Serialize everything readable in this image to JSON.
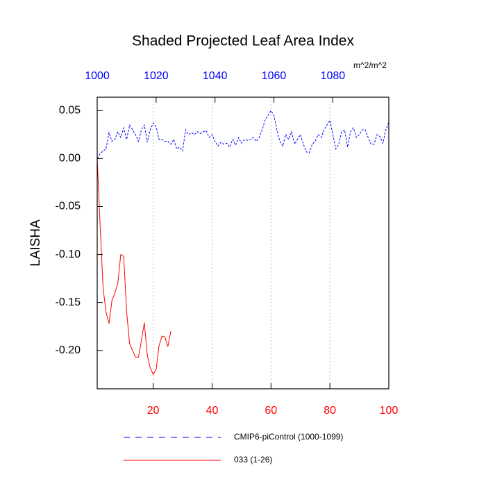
{
  "chart_data": {
    "type": "line",
    "title": "Shaded Projected Leaf Area Index",
    "ylabel": "LAISHA",
    "units_label": "m^2/m^2",
    "xlim": [
      1,
      100
    ],
    "xticks": [
      20,
      40,
      60,
      80,
      100
    ],
    "x2lim": [
      1000,
      1099
    ],
    "x2ticks": [
      1000,
      1020,
      1040,
      1060,
      1080
    ],
    "ylim": [
      -0.24,
      0.064
    ],
    "yticks": [
      {
        "value": 0.05,
        "label": "0.05"
      },
      {
        "value": 0,
        "label": "0.00"
      },
      {
        "value": -0.05,
        "label": "-0.05"
      },
      {
        "value": -0.1,
        "label": "-0.10"
      },
      {
        "value": -0.15,
        "label": "-0.15"
      },
      {
        "value": -0.2,
        "label": "-0.20"
      }
    ],
    "grid": "x",
    "xtick_color": "#ff0000",
    "x2tick_color": "#0000ff",
    "series": [
      {
        "name": "CMIP6-piControl (1000-1099)",
        "color": "#0000ff",
        "dash": true,
        "x": [
          1,
          2,
          3,
          4,
          5,
          6,
          7,
          8,
          9,
          10,
          11,
          12,
          13,
          14,
          15,
          16,
          17,
          18,
          19,
          20,
          21,
          22,
          23,
          24,
          25,
          26,
          27,
          28,
          29,
          30,
          31,
          32,
          33,
          34,
          35,
          36,
          37,
          38,
          39,
          40,
          41,
          42,
          43,
          44,
          45,
          46,
          47,
          48,
          49,
          50,
          51,
          52,
          53,
          54,
          55,
          56,
          57,
          58,
          59,
          60,
          61,
          62,
          63,
          64,
          65,
          66,
          67,
          68,
          69,
          70,
          71,
          72,
          73,
          74,
          75,
          76,
          77,
          78,
          79,
          80,
          81,
          82,
          83,
          84,
          85,
          86,
          87,
          88,
          89,
          90,
          91,
          92,
          93,
          94,
          95,
          96,
          97,
          98,
          99,
          100
        ],
        "values": [
          0.0,
          0.005,
          0.008,
          0.01,
          0.027,
          0.018,
          0.02,
          0.028,
          0.022,
          0.032,
          0.02,
          0.035,
          0.03,
          0.025,
          0.018,
          0.03,
          0.035,
          0.017,
          0.03,
          0.037,
          0.033,
          0.02,
          0.02,
          0.018,
          0.018,
          0.015,
          0.02,
          0.01,
          0.012,
          0.008,
          0.03,
          0.025,
          0.027,
          0.025,
          0.028,
          0.026,
          0.028,
          0.029,
          0.022,
          0.025,
          0.018,
          0.013,
          0.017,
          0.015,
          0.016,
          0.012,
          0.02,
          0.014,
          0.022,
          0.016,
          0.02,
          0.019,
          0.02,
          0.022,
          0.018,
          0.022,
          0.03,
          0.04,
          0.045,
          0.05,
          0.045,
          0.03,
          0.018,
          0.013,
          0.025,
          0.02,
          0.028,
          0.015,
          0.02,
          0.025,
          0.015,
          0.007,
          0.006,
          0.015,
          0.018,
          0.025,
          0.022,
          0.03,
          0.035,
          0.04,
          0.025,
          0.01,
          0.015,
          0.028,
          0.03,
          0.012,
          0.028,
          0.032,
          0.022,
          0.025,
          0.03,
          0.03,
          0.022,
          0.015,
          0.015,
          0.025,
          0.023,
          0.016,
          0.03,
          0.038
        ]
      },
      {
        "name": "033 (1-26)",
        "color": "#ff0000",
        "dash": false,
        "x": [
          1,
          2,
          3,
          4,
          5,
          6,
          7,
          8,
          9,
          10,
          11,
          12,
          13,
          14,
          15,
          16,
          17,
          18,
          19,
          20,
          21,
          22,
          23,
          24,
          25,
          26
        ],
        "values": [
          0.0,
          -0.07,
          -0.135,
          -0.16,
          -0.172,
          -0.148,
          -0.14,
          -0.13,
          -0.1,
          -0.102,
          -0.16,
          -0.193,
          -0.2,
          -0.207,
          -0.207,
          -0.19,
          -0.171,
          -0.205,
          -0.218,
          -0.225,
          -0.22,
          -0.195,
          -0.185,
          -0.186,
          -0.196,
          -0.18
        ]
      }
    ]
  }
}
